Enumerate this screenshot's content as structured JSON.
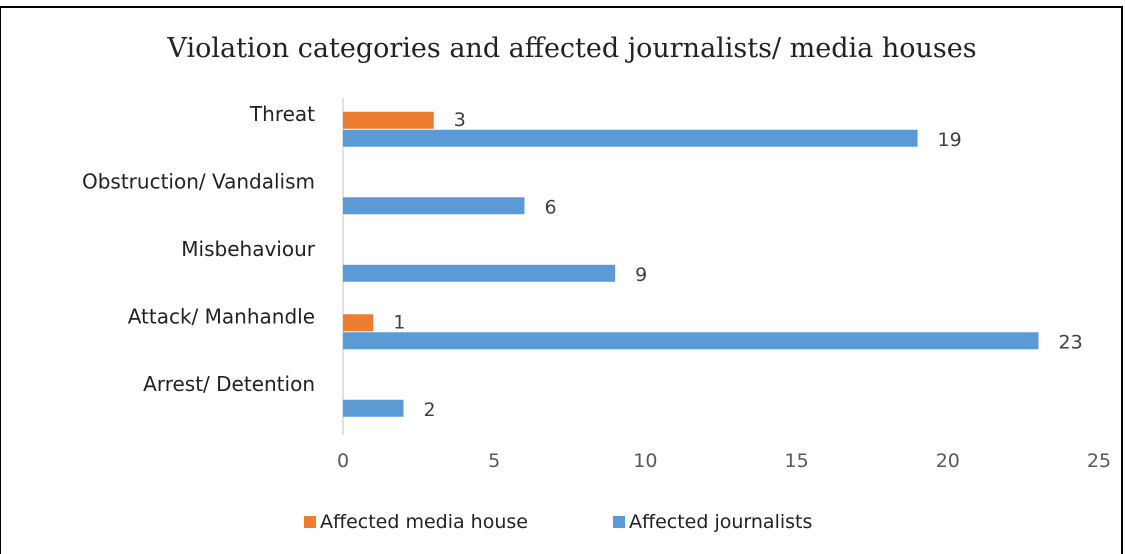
{
  "chart_data": {
    "type": "bar",
    "orientation": "horizontal",
    "title": "Violation categories and affected journalists/ media houses",
    "categories": [
      "Threat",
      "Obstruction/ Vandalism",
      "Misbehaviour",
      "Attack/ Manhandle",
      "Arrest/ Detention"
    ],
    "series": [
      {
        "name": "Affected media house",
        "color": "#ed7d31",
        "values": [
          3,
          null,
          null,
          1,
          null
        ]
      },
      {
        "name": "Affected journalists",
        "color": "#5b9bd5",
        "values": [
          19,
          6,
          9,
          23,
          2
        ]
      }
    ],
    "xlim": [
      0,
      25
    ],
    "xticks": [
      0,
      5,
      10,
      15,
      20,
      25
    ],
    "xlabel": "",
    "ylabel": "",
    "grid": false,
    "legend_position": "bottom"
  }
}
